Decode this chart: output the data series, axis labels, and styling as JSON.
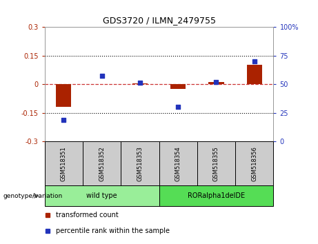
{
  "title": "GDS3720 / ILMN_2479755",
  "samples": [
    "GSM518351",
    "GSM518352",
    "GSM518353",
    "GSM518354",
    "GSM518355",
    "GSM518356"
  ],
  "transformed_count": [
    -0.12,
    0.0,
    0.005,
    -0.025,
    0.01,
    0.1
  ],
  "percentile_rank": [
    19,
    57,
    51,
    30,
    52,
    70
  ],
  "left_ylim": [
    -0.3,
    0.3
  ],
  "right_ylim": [
    0,
    100
  ],
  "left_yticks": [
    -0.3,
    -0.15,
    0,
    0.15,
    0.3
  ],
  "right_yticks": [
    0,
    25,
    50,
    75,
    100
  ],
  "left_ytick_labels": [
    "-0.3",
    "-0.15",
    "0",
    "0.15",
    "0.3"
  ],
  "right_ytick_labels": [
    "0",
    "25",
    "50",
    "75",
    "100%"
  ],
  "bar_color": "#AA2200",
  "dot_color": "#2233BB",
  "hline_color": "#CC3333",
  "groups": [
    {
      "label": "wild type",
      "indices": [
        0,
        1,
        2
      ],
      "color": "#99EE99"
    },
    {
      "label": "RORalpha1delDE",
      "indices": [
        3,
        4,
        5
      ],
      "color": "#55DD55"
    }
  ],
  "genotype_label": "genotype/variation",
  "legend_bar_label": "transformed count",
  "legend_dot_label": "percentile rank within the sample",
  "background_color": "#FFFFFF",
  "plot_bg": "#FFFFFF",
  "sample_box_color": "#CCCCCC"
}
